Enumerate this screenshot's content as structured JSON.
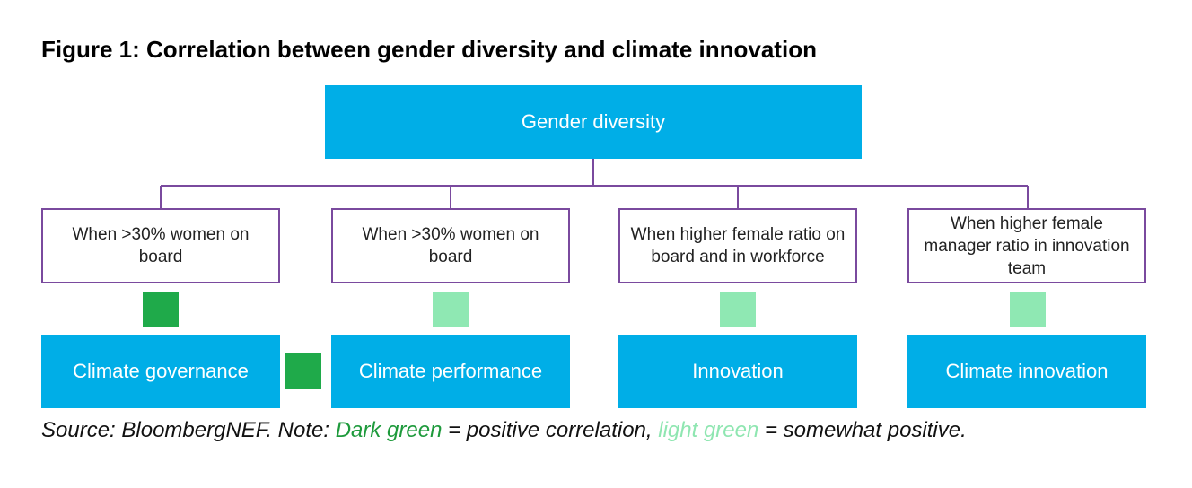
{
  "title": "Figure 1:  Correlation between gender diversity and climate innovation",
  "root": {
    "label": "Gender diversity"
  },
  "conditions": [
    {
      "label": "When >30% women on board"
    },
    {
      "label": "When >30% women on board"
    },
    {
      "label": "When higher female ratio on board and in workforce"
    },
    {
      "label": "When higher female manager ratio in innovation team"
    }
  ],
  "outcomes": [
    {
      "label": "Climate governance"
    },
    {
      "label": "Climate performance"
    },
    {
      "label": "Innovation"
    },
    {
      "label": "Climate innovation"
    }
  ],
  "source": {
    "prefix": "Source: BloombergNEF. Note: ",
    "dark_label": "Dark green",
    "middle": " = positive correlation, ",
    "light_label": "light green",
    "suffix": " = somewhat positive."
  },
  "colors": {
    "box_blue": "#00aee7",
    "border_purple": "#7a4a9e",
    "dark_green": "#1faa4a",
    "light_green": "#8fe8b3"
  }
}
